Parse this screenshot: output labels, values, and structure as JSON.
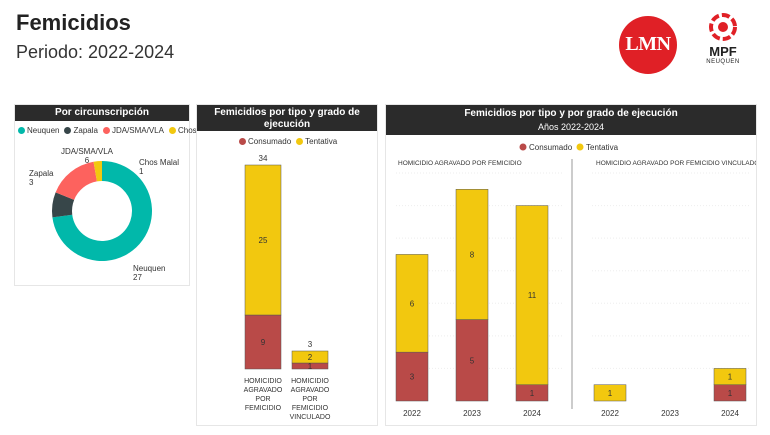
{
  "header": {
    "title": "Femicidios",
    "subtitle": "Periodo: 2022-2024"
  },
  "logos": {
    "lmn": {
      "text": "LMN",
      "color": "#e02026"
    },
    "mpf": {
      "text": "MPF",
      "subtext": "NEUQUEN",
      "color": "#e02026"
    }
  },
  "colors": {
    "consumado": "#b94a48",
    "tentativa": "#f2c80f"
  },
  "chart_data": [
    {
      "type": "pie",
      "title": "Por circunscripción",
      "slices": [
        {
          "label": "Neuquen",
          "value": 27,
          "color": "#01b8aa"
        },
        {
          "label": "Zapala",
          "value": 3,
          "color": "#374649"
        },
        {
          "label": "JDA/SMA/VLA",
          "value": 6,
          "color": "#fd625e"
        },
        {
          "label": "Chos Malal",
          "value": 1,
          "color": "#f2c80f"
        }
      ]
    },
    {
      "type": "bar",
      "stacked": true,
      "title": "Femicidios por tipo y grado de ejecución",
      "legend": [
        "Consumado",
        "Tentativa"
      ],
      "categories": [
        "HOMICIDIO AGRAVADO POR FEMICIDIO",
        "HOMICIDIO AGRAVADO POR FEMICIDIO VINCULADO"
      ],
      "category_lines": [
        [
          "HOMICIDIO",
          "AGRAVADO",
          "POR",
          "FEMICIDIO"
        ],
        [
          "HOMICIDIO",
          "AGRAVADO",
          "POR",
          "FEMICIDIO",
          "VINCULADO"
        ]
      ],
      "series": [
        {
          "name": "Consumado",
          "values": [
            9,
            1
          ]
        },
        {
          "name": "Tentativa",
          "values": [
            25,
            2
          ]
        }
      ],
      "totals": [
        34,
        3
      ]
    },
    {
      "type": "bar",
      "stacked": true,
      "title": "Femicidios por tipo y por grado de ejecución",
      "subtitle": "Años 2022-2024",
      "legend": [
        "Consumado",
        "Tentativa"
      ],
      "panels": [
        {
          "title": "HOMICIDIO AGRAVADO POR FEMICIDIO",
          "categories": [
            "2022",
            "2023",
            "2024"
          ],
          "series": [
            {
              "name": "Consumado",
              "values": [
                3,
                5,
                1
              ]
            },
            {
              "name": "Tentativa",
              "values": [
                6,
                8,
                11
              ]
            }
          ]
        },
        {
          "title": "HOMICIDIO AGRAVADO POR FEMICIDIO VINCULADO",
          "categories": [
            "2022",
            "2023",
            "2024"
          ],
          "series": [
            {
              "name": "Consumado",
              "values": [
                0,
                0,
                1
              ]
            },
            {
              "name": "Tentativa",
              "values": [
                1,
                0,
                1
              ]
            }
          ]
        }
      ]
    }
  ]
}
